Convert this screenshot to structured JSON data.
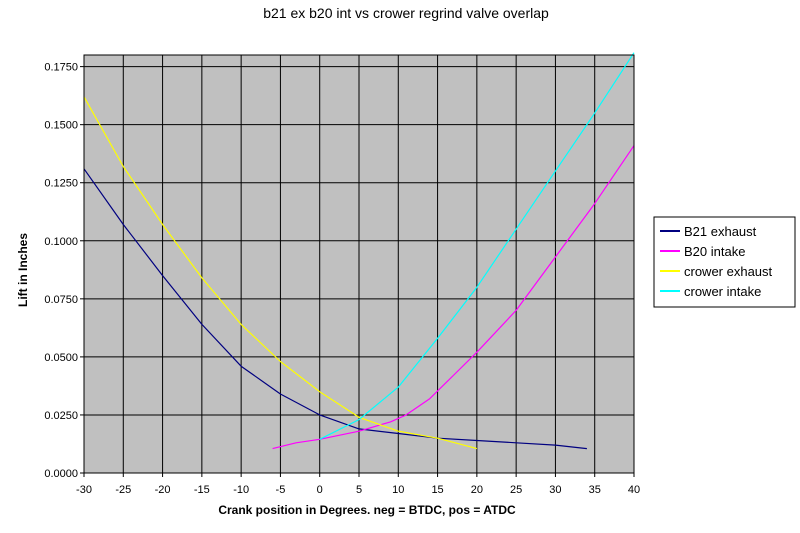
{
  "chart_data": {
    "type": "line",
    "title": "b21 ex b20 int vs crower regrind valve overlap",
    "xlabel": "Crank position in Degrees. neg = BTDC, pos = ATDC",
    "ylabel": "Lift in Inches",
    "xlim": [
      -30,
      40
    ],
    "ylim": [
      0,
      0.18
    ],
    "xticks": [
      -30,
      -25,
      -20,
      -15,
      -10,
      -5,
      0,
      5,
      10,
      15,
      20,
      25,
      30,
      35,
      40
    ],
    "xtick_labels": [
      "-30",
      "-25",
      "-20",
      "-15",
      "-10",
      "-5",
      "0",
      "5",
      "10",
      "15",
      "20",
      "25",
      "30",
      "35",
      "40"
    ],
    "yticks": [
      0,
      0.025,
      0.05,
      0.075,
      0.1,
      0.125,
      0.15,
      0.175
    ],
    "ytick_labels": [
      "0.0000",
      "0.0250",
      "0.0500",
      "0.0750",
      "0.1000",
      "0.1250",
      "0.1500",
      "0.1750"
    ],
    "grid": true,
    "legend_position": "right",
    "plot_background": "#c0c0c0",
    "series": [
      {
        "name": "B21 exhaust",
        "color": "#000080",
        "points": [
          [
            -30,
            0.131
          ],
          [
            -25,
            0.107
          ],
          [
            -20,
            0.085
          ],
          [
            -15,
            0.064
          ],
          [
            -10,
            0.046
          ],
          [
            -5,
            0.034
          ],
          [
            0,
            0.025
          ],
          [
            5,
            0.019
          ],
          [
            10,
            0.017
          ],
          [
            15,
            0.015
          ],
          [
            20,
            0.014
          ],
          [
            25,
            0.013
          ],
          [
            30,
            0.012
          ],
          [
            34,
            0.0105
          ]
        ]
      },
      {
        "name": "B20 intake",
        "color": "#ff00ff",
        "points": [
          [
            -6,
            0.0105
          ],
          [
            -3,
            0.013
          ],
          [
            0,
            0.0145
          ],
          [
            5,
            0.018
          ],
          [
            9,
            0.022
          ],
          [
            11,
            0.025
          ],
          [
            14,
            0.032
          ],
          [
            17,
            0.042
          ],
          [
            20,
            0.052
          ],
          [
            25,
            0.07
          ],
          [
            30,
            0.093
          ],
          [
            35,
            0.116
          ],
          [
            40,
            0.141
          ]
        ]
      },
      {
        "name": "crower exhaust",
        "color": "#ffff00",
        "points": [
          [
            -30,
            0.162
          ],
          [
            -25,
            0.132
          ],
          [
            -20,
            0.107
          ],
          [
            -15,
            0.084
          ],
          [
            -10,
            0.064
          ],
          [
            -5,
            0.048
          ],
          [
            0,
            0.035
          ],
          [
            5,
            0.024
          ],
          [
            10,
            0.018
          ],
          [
            15,
            0.015
          ],
          [
            20,
            0.0105
          ]
        ]
      },
      {
        "name": "crower intake",
        "color": "#00ffff",
        "points": [
          [
            0,
            0.0145
          ],
          [
            5,
            0.023
          ],
          [
            10,
            0.037
          ],
          [
            15,
            0.058
          ],
          [
            20,
            0.08
          ],
          [
            25,
            0.105
          ],
          [
            30,
            0.13
          ],
          [
            35,
            0.155
          ],
          [
            40,
            0.181
          ]
        ]
      }
    ]
  }
}
